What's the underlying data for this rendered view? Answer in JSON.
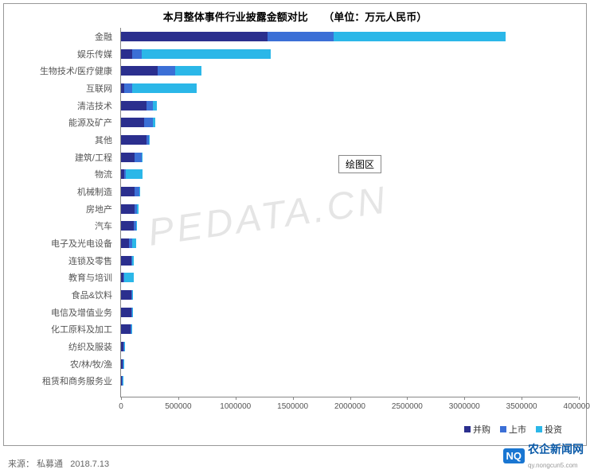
{
  "chart": {
    "title": "本月整体事件行业披露金额对比　　（单位：万元人民币）",
    "watermark": "PEDATA.CN",
    "plot_label": "绘图区",
    "xmax": 4000000,
    "xtick_step": 500000,
    "xticks": [
      "0",
      "500000",
      "1000000",
      "1500000",
      "2000000",
      "2500000",
      "3000000",
      "3500000",
      "4000000"
    ],
    "background_color": "#ffffff",
    "grid_color": "#cccccc",
    "axis_color": "#888888",
    "label_fontsize": 11,
    "title_fontsize": 13,
    "series": [
      {
        "name": "并购",
        "color": "#2b2f8e"
      },
      {
        "name": "上市",
        "color": "#3b6fd6"
      },
      {
        "name": "投资",
        "color": "#2bb7e8"
      }
    ],
    "categories": [
      {
        "label": "金融",
        "values": [
          1280000,
          580000,
          1500000
        ]
      },
      {
        "label": "娱乐传媒",
        "values": [
          100000,
          80000,
          1130000
        ]
      },
      {
        "label": "生物技术/医疗健康",
        "values": [
          320000,
          150000,
          230000
        ]
      },
      {
        "label": "互联网",
        "values": [
          30000,
          70000,
          560000
        ]
      },
      {
        "label": "清洁技术",
        "values": [
          220000,
          60000,
          30000
        ]
      },
      {
        "label": "能源及矿产",
        "values": [
          200000,
          80000,
          20000
        ]
      },
      {
        "label": "其他",
        "values": [
          220000,
          20000,
          10000
        ]
      },
      {
        "label": "建筑/工程",
        "values": [
          120000,
          60000,
          10000
        ]
      },
      {
        "label": "物流",
        "values": [
          30000,
          10000,
          150000
        ]
      },
      {
        "label": "机械制造",
        "values": [
          120000,
          40000,
          10000
        ]
      },
      {
        "label": "房地产",
        "values": [
          120000,
          20000,
          10000
        ]
      },
      {
        "label": "汽车",
        "values": [
          110000,
          20000,
          10000
        ]
      },
      {
        "label": "电子及光电设备",
        "values": [
          70000,
          30000,
          30000
        ]
      },
      {
        "label": "连锁及零售",
        "values": [
          90000,
          10000,
          10000
        ]
      },
      {
        "label": "教育与培训",
        "values": [
          20000,
          10000,
          80000
        ]
      },
      {
        "label": "食品&饮料",
        "values": [
          90000,
          10000,
          5000
        ]
      },
      {
        "label": "电信及增值业务",
        "values": [
          90000,
          5000,
          5000
        ]
      },
      {
        "label": "化工原料及加工",
        "values": [
          80000,
          10000,
          5000
        ]
      },
      {
        "label": "纺织及服装",
        "values": [
          20000,
          5000,
          5000
        ]
      },
      {
        "label": "农/林/牧/渔",
        "values": [
          15000,
          5000,
          5000
        ]
      },
      {
        "label": "租赁和商务服务业",
        "values": [
          10000,
          5000,
          5000
        ]
      }
    ]
  },
  "source": {
    "prefix": "来源：",
    "name": "私募通",
    "date": "2018.7.13"
  },
  "footer_logo": {
    "icon_text": "NQ",
    "text": "农企新闻网",
    "sub": "qy.nongcun5.com"
  }
}
